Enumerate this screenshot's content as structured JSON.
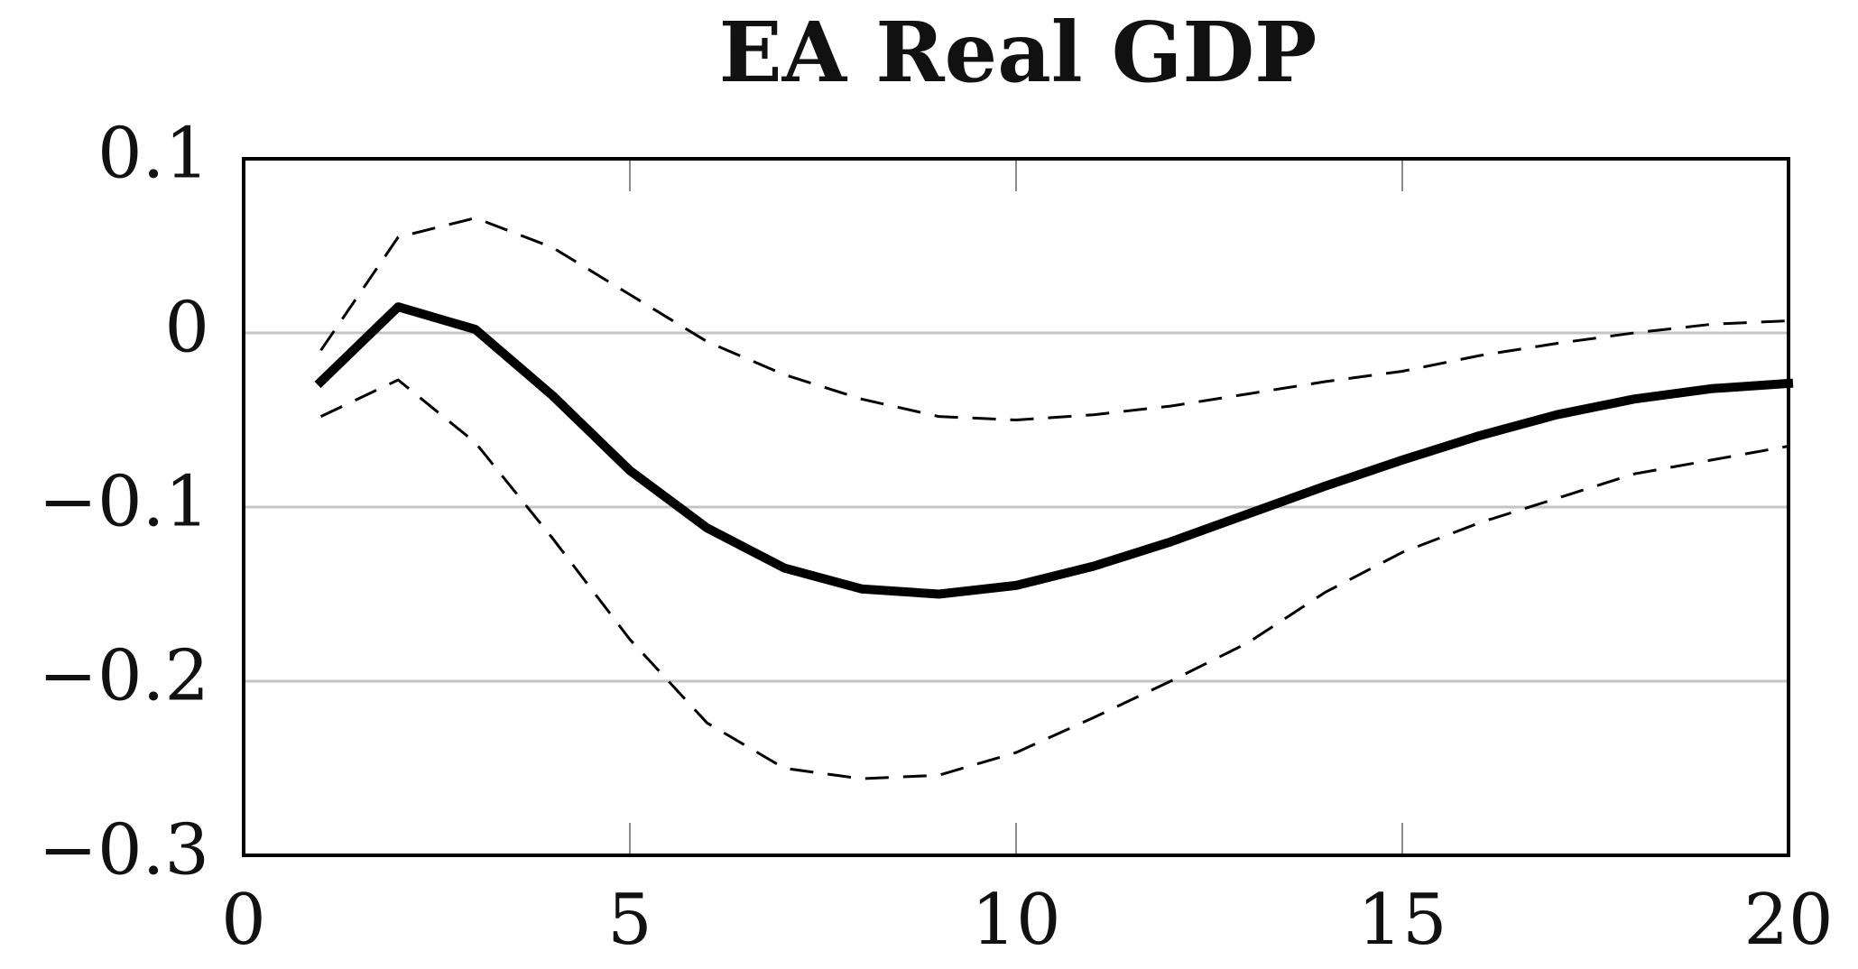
{
  "chart_data": {
    "type": "line",
    "title": "EA Real GDP",
    "xlabel": "",
    "ylabel": "",
    "xlim": [
      0,
      20
    ],
    "ylim": [
      -0.3,
      0.1
    ],
    "x_ticks": [
      0,
      5,
      10,
      15,
      20
    ],
    "x_tick_labels": [
      "0",
      "5",
      "10",
      "15",
      "20"
    ],
    "y_ticks": [
      0.1,
      0,
      -0.1,
      -0.2,
      -0.3
    ],
    "y_tick_labels": [
      "0.1",
      "0",
      "−0.1",
      "−0.2",
      "−0.3"
    ],
    "grid": "horizontal",
    "x": [
      1,
      2,
      3,
      4,
      5,
      6,
      7,
      8,
      9,
      10,
      11,
      12,
      13,
      14,
      15,
      16,
      17,
      18,
      19,
      20
    ],
    "series": [
      {
        "style": "solid-thick",
        "color": "#000000",
        "values": [
          -0.028,
          0.015,
          0.002,
          -0.036,
          -0.079,
          -0.112,
          -0.135,
          -0.147,
          -0.15,
          -0.145,
          -0.134,
          -0.12,
          -0.104,
          -0.088,
          -0.073,
          -0.059,
          -0.047,
          -0.038,
          -0.032,
          -0.029
        ]
      },
      {
        "style": "dashed",
        "color": "#000000",
        "values": [
          -0.01,
          0.055,
          0.066,
          0.049,
          0.022,
          -0.005,
          -0.024,
          -0.038,
          -0.048,
          -0.05,
          -0.047,
          -0.042,
          -0.035,
          -0.028,
          -0.022,
          -0.013,
          -0.006,
          0.0,
          0.005,
          0.007
        ]
      },
      {
        "style": "dashed",
        "color": "#000000",
        "values": [
          -0.048,
          -0.027,
          -0.063,
          -0.118,
          -0.176,
          -0.224,
          -0.25,
          -0.256,
          -0.254,
          -0.241,
          -0.221,
          -0.2,
          -0.178,
          -0.149,
          -0.126,
          -0.109,
          -0.095,
          -0.081,
          -0.073,
          -0.065
        ]
      }
    ]
  }
}
